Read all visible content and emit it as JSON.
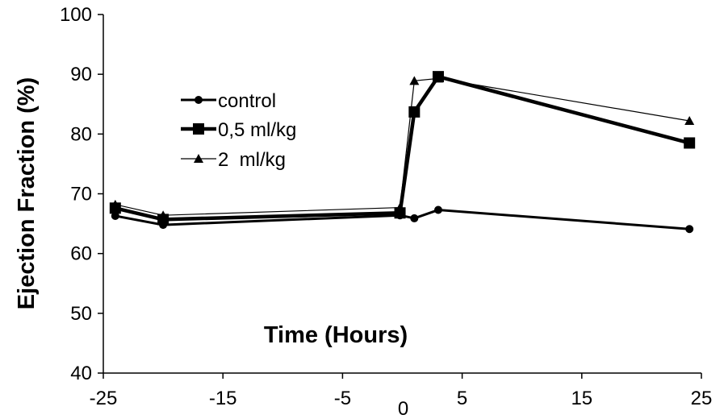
{
  "chart_data": {
    "type": "line",
    "title": "",
    "xlabel": "Time (Hours)",
    "ylabel": "Ejection Fraction (%)",
    "xlim": [
      -25,
      25
    ],
    "ylim": [
      40,
      100
    ],
    "x_ticks": [
      -25,
      -15,
      -5,
      5,
      15,
      25
    ],
    "x_tick_labels": [
      "-25",
      "-15",
      "-5",
      "5",
      "15",
      "25"
    ],
    "y_ticks": [
      40,
      50,
      60,
      70,
      80,
      90,
      100
    ],
    "y_tick_labels": [
      "40",
      "50",
      "60",
      "70",
      "80",
      "90",
      "100"
    ],
    "extra_x_label": {
      "text": "0",
      "x": 0
    },
    "grid": false,
    "legend_position": "upper-left",
    "series": [
      {
        "name": "control",
        "marker": "circle",
        "color": "#000000",
        "x": [
          -24,
          -20,
          -0.2,
          1,
          3,
          24
        ],
        "y": [
          66.3,
          64.8,
          66.4,
          65.9,
          67.3,
          64.1
        ]
      },
      {
        "name": "0,5 ml/kg",
        "marker": "square",
        "color": "#000000",
        "x": [
          -24,
          -20,
          -0.2,
          1,
          3,
          24
        ],
        "y": [
          67.6,
          65.7,
          66.8,
          83.7,
          89.6,
          78.5
        ]
      },
      {
        "name": "2  ml/kg",
        "marker": "triangle",
        "color": "#000000",
        "x": [
          -24,
          -20,
          -0.2,
          1,
          3,
          24
        ],
        "y": [
          68.2,
          66.4,
          67.7,
          88.9,
          89.3,
          82.2
        ]
      }
    ]
  }
}
